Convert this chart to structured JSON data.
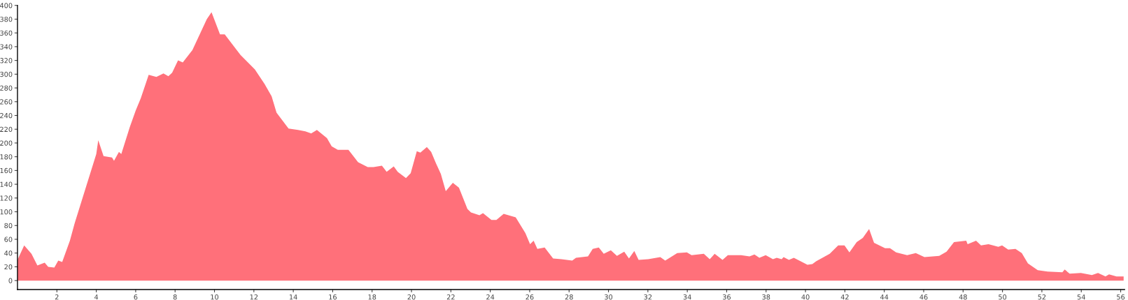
{
  "chart_data": {
    "type": "area",
    "color": "#ff707a",
    "x": [
      0,
      0.34,
      0.71,
      1.01,
      1.38,
      1.56,
      1.87,
      2.07,
      2.27,
      2.66,
      2.9,
      3.51,
      4.0,
      4.1,
      4.37,
      4.8,
      4.9,
      5.15,
      5.27,
      5.7,
      6.0,
      6.26,
      6.66,
      7.05,
      7.41,
      7.66,
      7.85,
      8.15,
      8.39,
      8.88,
      9.61,
      9.85,
      10.28,
      10.52,
      11.32,
      12.05,
      12.54,
      12.9,
      13.15,
      13.76,
      14.24,
      14.61,
      14.91,
      15.2,
      15.71,
      15.95,
      16.26,
      16.8,
      17.29,
      17.78,
      18.07,
      18.5,
      18.74,
      19.1,
      19.3,
      19.72,
      19.96,
      20.27,
      20.45,
      20.78,
      21.0,
      21.25,
      21.49,
      21.74,
      22.1,
      22.41,
      22.84,
      23.02,
      23.45,
      23.63,
      24.06,
      24.31,
      24.68,
      25.29,
      25.78,
      26.02,
      26.2,
      26.39,
      26.76,
      27.19,
      27.61,
      28.16,
      28.35,
      28.96,
      29.2,
      29.51,
      29.76,
      30.12,
      30.43,
      30.8,
      31.04,
      31.31,
      31.53,
      32.02,
      32.63,
      32.88,
      33.49,
      33.98,
      34.22,
      34.84,
      35.14,
      35.39,
      35.79,
      36.06,
      36.73,
      37.16,
      37.41,
      37.66,
      37.98,
      38.35,
      38.54,
      38.79,
      38.89,
      39.16,
      39.41,
      40.1,
      40.35,
      40.54,
      41.23,
      41.66,
      41.98,
      42.23,
      42.6,
      42.91,
      43.23,
      43.48,
      44.04,
      44.29,
      44.6,
      45.16,
      45.6,
      46.04,
      46.79,
      47.16,
      47.54,
      48.16,
      48.23,
      48.66,
      48.91,
      49.29,
      49.79,
      49.98,
      50.29,
      50.66,
      50.98,
      51.29,
      51.79,
      52.29,
      53.04,
      53.16,
      53.41,
      53.98,
      54.54,
      54.85,
      55.23,
      55.41,
      55.79,
      56.15
    ],
    "values": [
      30,
      51,
      39,
      22,
      26,
      20,
      19,
      29,
      27,
      58,
      83,
      139,
      184,
      204,
      181,
      179,
      174,
      187,
      184,
      223,
      247,
      265,
      299,
      296,
      301,
      297,
      302,
      320,
      317,
      335,
      380,
      390,
      358,
      358,
      328,
      307,
      286,
      268,
      244,
      221,
      219,
      217,
      214,
      219,
      207,
      195,
      190,
      190,
      172,
      165,
      165,
      167,
      158,
      166,
      158,
      149,
      156,
      188,
      186,
      194,
      187,
      170,
      155,
      130,
      142,
      135,
      104,
      99,
      95,
      98,
      88,
      88,
      97,
      92,
      69,
      53,
      58,
      46,
      48,
      32,
      31,
      29,
      33,
      35,
      46,
      48,
      39,
      44,
      36,
      42,
      32,
      43,
      30,
      31,
      34,
      29,
      40,
      41,
      37,
      39,
      31,
      39,
      30,
      37,
      37,
      35,
      38,
      33,
      37,
      31,
      33,
      31,
      34,
      30,
      33,
      23,
      24,
      28,
      39,
      51,
      51,
      41,
      56,
      62,
      75,
      55,
      47,
      47,
      41,
      37,
      40,
      34,
      36,
      42,
      56,
      58,
      53,
      58,
      51,
      53,
      49,
      51,
      45,
      46,
      40,
      25,
      15,
      13,
      12,
      16,
      10,
      11,
      8,
      11,
      6,
      9,
      6,
      6
    ],
    "xlim": [
      0,
      56.2
    ],
    "ylim": [
      -13,
      400
    ],
    "xticks": [
      2,
      4,
      6,
      8,
      10,
      12,
      14,
      16,
      18,
      20,
      22,
      24,
      26,
      28,
      30,
      32,
      34,
      36,
      38,
      40,
      42,
      44,
      46,
      48,
      50,
      52,
      54,
      56
    ],
    "yticks": [
      0,
      20,
      40,
      60,
      80,
      100,
      120,
      140,
      160,
      180,
      200,
      220,
      240,
      260,
      280,
      300,
      320,
      340,
      360,
      380,
      400
    ],
    "grid": false
  }
}
